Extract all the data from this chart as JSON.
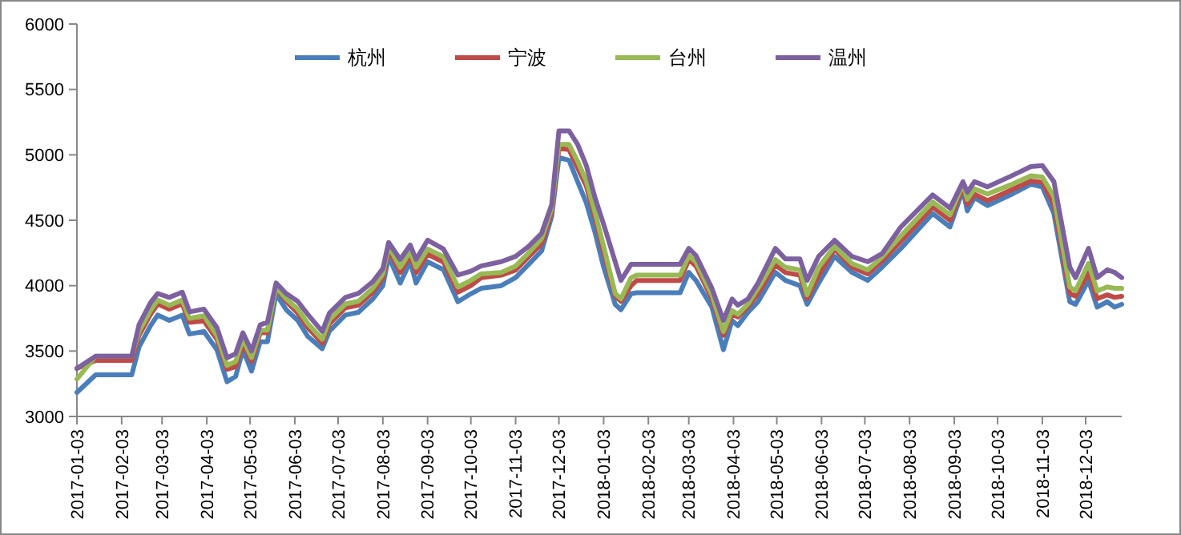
{
  "chart_data": {
    "type": "line",
    "x": [
      "2017-01-03",
      "2017-01-16",
      "2017-02-10",
      "2017-02-15",
      "2017-02-23",
      "2017-02-28",
      "2017-03-08",
      "2017-03-17",
      "2017-03-22",
      "2017-04-01",
      "2017-04-10",
      "2017-04-17",
      "2017-04-23",
      "2017-04-28",
      "2017-05-04",
      "2017-05-10",
      "2017-05-15",
      "2017-05-21",
      "2017-05-28",
      "2017-06-05",
      "2017-06-12",
      "2017-06-22",
      "2017-06-27",
      "2017-07-08",
      "2017-07-17",
      "2017-07-27",
      "2017-08-03",
      "2017-08-07",
      "2017-08-15",
      "2017-08-22",
      "2017-08-26",
      "2017-09-03",
      "2017-09-14",
      "2017-09-24",
      "2017-10-03",
      "2017-10-10",
      "2017-10-24",
      "2017-11-03",
      "2017-11-12",
      "2017-11-21",
      "2017-11-28",
      "2017-12-03",
      "2017-12-10",
      "2017-12-16",
      "2017-12-22",
      "2017-12-28",
      "2018-01-03",
      "2018-01-11",
      "2018-01-15",
      "2018-01-22",
      "2018-01-26",
      "2018-02-25",
      "2018-03-03",
      "2018-03-08",
      "2018-03-19",
      "2018-03-27",
      "2018-04-02",
      "2018-04-06",
      "2018-04-13",
      "2018-04-20",
      "2018-05-02",
      "2018-05-09",
      "2018-05-19",
      "2018-05-24",
      "2018-06-01",
      "2018-06-12",
      "2018-06-24",
      "2018-07-05",
      "2018-07-15",
      "2018-07-28",
      "2018-08-19",
      "2018-08-31",
      "2018-09-09",
      "2018-09-12",
      "2018-09-17",
      "2018-09-26",
      "2018-10-12",
      "2018-10-26",
      "2018-11-03",
      "2018-11-11",
      "2018-11-22",
      "2018-11-26",
      "2018-12-05",
      "2018-12-11",
      "2018-12-18",
      "2018-12-23",
      "2018-12-28"
    ],
    "series": [
      {
        "name": "杭州",
        "color": "#4a7ebb",
        "values": [
          3184,
          3318,
          3318,
          3530,
          3694,
          3775,
          3735,
          3775,
          3630,
          3650,
          3510,
          3265,
          3306,
          3510,
          3347,
          3571,
          3571,
          3938,
          3816,
          3735,
          3612,
          3518,
          3653,
          3775,
          3796,
          3898,
          4000,
          4224,
          4020,
          4183,
          4020,
          4183,
          4122,
          3877,
          3938,
          3979,
          4000,
          4061,
          4163,
          4265,
          4530,
          4979,
          4959,
          4795,
          4632,
          4408,
          4142,
          3857,
          3816,
          3938,
          3946,
          3946,
          4102,
          4040,
          3836,
          3510,
          3734,
          3694,
          3796,
          3877,
          4102,
          4040,
          4000,
          3857,
          4020,
          4224,
          4102,
          4040,
          4142,
          4285,
          4551,
          4449,
          4734,
          4571,
          4673,
          4612,
          4694,
          4775,
          4755,
          4551,
          3877,
          3857,
          4040,
          3836,
          3877,
          3836,
          3857
        ]
      },
      {
        "name": "宁波",
        "color": "#be4b48",
        "values": [
          3367,
          3428,
          3428,
          3620,
          3780,
          3860,
          3820,
          3860,
          3720,
          3730,
          3590,
          3360,
          3380,
          3560,
          3420,
          3640,
          3640,
          3990,
          3880,
          3790,
          3680,
          3560,
          3710,
          3830,
          3850,
          3950,
          4060,
          4280,
          4100,
          4230,
          4100,
          4240,
          4180,
          3950,
          4000,
          4060,
          4080,
          4120,
          4220,
          4320,
          4560,
          5050,
          5040,
          4900,
          4760,
          4520,
          4250,
          3920,
          3880,
          4000,
          4040,
          4040,
          4200,
          4150,
          3900,
          3620,
          3780,
          3760,
          3840,
          3940,
          4160,
          4100,
          4080,
          3900,
          4080,
          4280,
          4140,
          4090,
          4190,
          4340,
          4600,
          4500,
          4760,
          4620,
          4700,
          4650,
          4730,
          4800,
          4790,
          4620,
          3940,
          3920,
          4100,
          3900,
          3930,
          3910,
          3918
        ]
      },
      {
        "name": "台州",
        "color": "#98b954",
        "values": [
          3286,
          3461,
          3461,
          3650,
          3810,
          3890,
          3850,
          3890,
          3750,
          3770,
          3620,
          3390,
          3420,
          3590,
          3450,
          3660,
          3660,
          3990,
          3900,
          3820,
          3710,
          3590,
          3740,
          3860,
          3880,
          3980,
          4090,
          4300,
          4140,
          4260,
          4140,
          4280,
          4220,
          3990,
          4040,
          4090,
          4100,
          4150,
          4250,
          4360,
          4590,
          5080,
          5080,
          4950,
          4800,
          4560,
          4300,
          3940,
          3900,
          4060,
          4081,
          4081,
          4230,
          4180,
          3930,
          3650,
          3810,
          3780,
          3860,
          3980,
          4200,
          4140,
          4120,
          3930,
          4140,
          4300,
          4170,
          4120,
          4220,
          4380,
          4640,
          4540,
          4780,
          4660,
          4740,
          4700,
          4770,
          4840,
          4830,
          4680,
          3990,
          3960,
          4170,
          3960,
          3990,
          3980,
          3979
        ]
      },
      {
        "name": "温州",
        "color": "#7d60a0",
        "values": [
          3367,
          3461,
          3461,
          3700,
          3870,
          3940,
          3910,
          3950,
          3800,
          3820,
          3680,
          3449,
          3480,
          3640,
          3500,
          3700,
          3720,
          4020,
          3940,
          3880,
          3780,
          3650,
          3790,
          3910,
          3940,
          4030,
          4130,
          4330,
          4200,
          4310,
          4200,
          4347,
          4280,
          4081,
          4110,
          4150,
          4183,
          4224,
          4300,
          4400,
          4620,
          5183,
          5183,
          5080,
          4918,
          4673,
          4469,
          4183,
          4040,
          4163,
          4163,
          4163,
          4285,
          4230,
          3980,
          3734,
          3898,
          3850,
          3898,
          4020,
          4285,
          4204,
          4204,
          4040,
          4224,
          4347,
          4224,
          4183,
          4245,
          4449,
          4694,
          4592,
          4795,
          4714,
          4795,
          4755,
          4836,
          4910,
          4918,
          4795,
          4142,
          4061,
          4285,
          4061,
          4122,
          4102,
          4061
        ]
      }
    ],
    "xlim": [
      "2017-01-03",
      "2018-12-28"
    ],
    "xticks": [
      "2017-01-03",
      "2017-02-03",
      "2017-03-03",
      "2017-04-03",
      "2017-05-03",
      "2017-06-03",
      "2017-07-03",
      "2017-08-03",
      "2017-09-03",
      "2017-10-03",
      "2017-11-03",
      "2017-12-03",
      "2018-01-03",
      "2018-02-03",
      "2018-03-03",
      "2018-04-03",
      "2018-05-03",
      "2018-06-03",
      "2018-07-03",
      "2018-08-03",
      "2018-09-03",
      "2018-10-03",
      "2018-11-03",
      "2018-12-03"
    ],
    "ylim": [
      3000,
      6000
    ],
    "yticks": [
      3000,
      3500,
      4000,
      4500,
      5000,
      5500,
      6000
    ],
    "legend": "top",
    "marker": "none",
    "line_style": "solid"
  }
}
